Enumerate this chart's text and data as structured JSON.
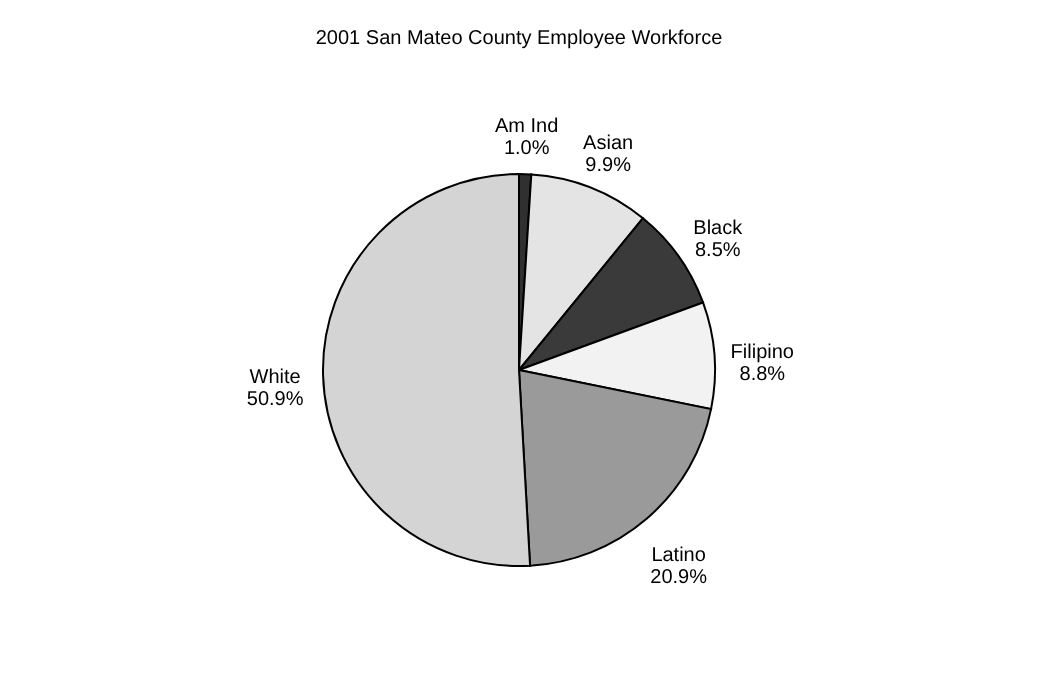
{
  "chart_data": {
    "type": "pie",
    "title": "2001 San Mateo County Employee Workforce",
    "categories": [
      "Am Ind",
      "Asian",
      "Black",
      "Filipino",
      "Latino",
      "White"
    ],
    "values": [
      1.0,
      9.9,
      8.5,
      8.8,
      20.9,
      50.9
    ],
    "value_labels": [
      "1.0%",
      "9.9%",
      "8.5%",
      "8.8%",
      "20.9%",
      "50.9%"
    ],
    "colors": [
      "#303030",
      "#e4e4e4",
      "#3a3a3a",
      "#f2f2f2",
      "#9a9a9a",
      "#d4d4d4"
    ],
    "legend": false
  }
}
